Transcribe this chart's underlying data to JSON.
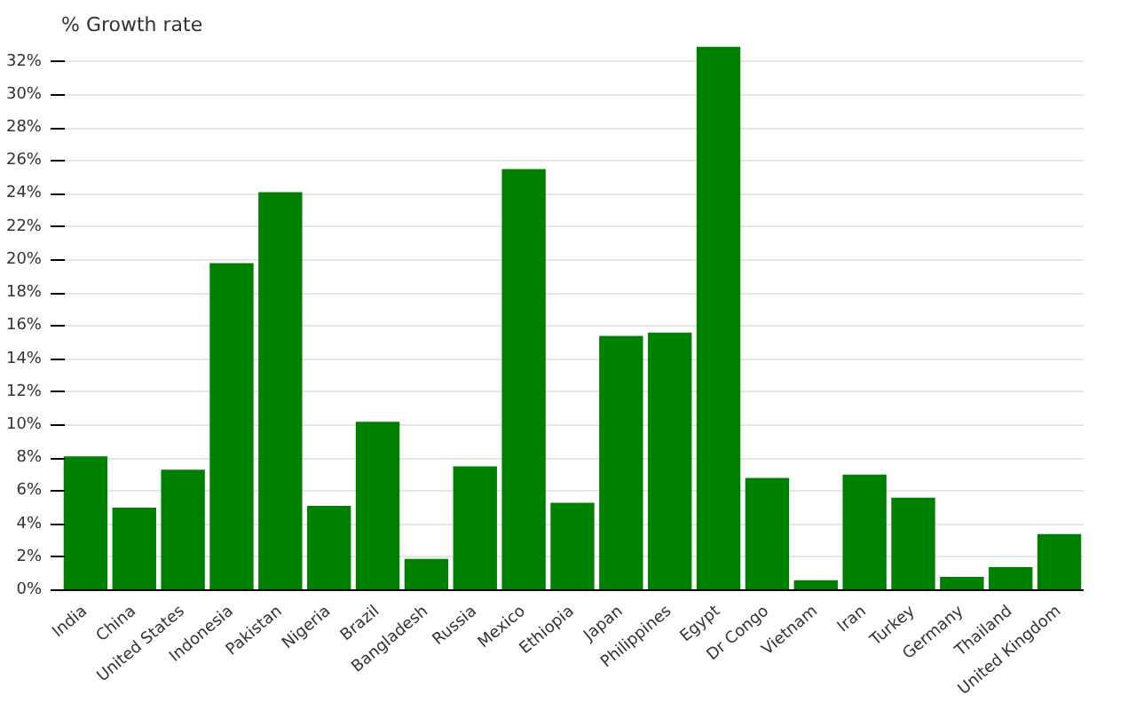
{
  "chart_data": {
    "type": "bar",
    "title": "% Growth rate",
    "categories": [
      "India",
      "China",
      "United States",
      "Indonesia",
      "Pakistan",
      "Nigeria",
      "Brazil",
      "Bangladesh",
      "Russia",
      "Mexico",
      "Ethiopia",
      "Japan",
      "Philippines",
      "Egypt",
      "Dr Congo",
      "Vietnam",
      "Iran",
      "Turkey",
      "Germany",
      "Thailand",
      "United Kingdom"
    ],
    "values": [
      8.1,
      5.0,
      7.3,
      19.8,
      24.1,
      5.1,
      10.2,
      1.9,
      7.5,
      25.5,
      5.3,
      15.4,
      15.6,
      32.9,
      6.8,
      0.6,
      7.0,
      5.6,
      0.8,
      1.4,
      3.4
    ],
    "color": "#008000",
    "ylim": [
      0,
      33
    ],
    "yticks": [
      {
        "value": 0,
        "label": "0%"
      },
      {
        "value": 2,
        "label": "2%"
      },
      {
        "value": 4,
        "label": "4%"
      },
      {
        "value": 6,
        "label": "6%"
      },
      {
        "value": 8,
        "label": "8%"
      },
      {
        "value": 10,
        "label": "10%"
      },
      {
        "value": 12,
        "label": "12%"
      },
      {
        "value": 14,
        "label": "14%"
      },
      {
        "value": 16,
        "label": "16%"
      },
      {
        "value": 18,
        "label": "18%"
      },
      {
        "value": 20,
        "label": "20%"
      },
      {
        "value": 22,
        "label": "22%"
      },
      {
        "value": 24,
        "label": "24%"
      },
      {
        "value": 26,
        "label": "26%"
      },
      {
        "value": 28,
        "label": "28%"
      },
      {
        "value": 30,
        "label": "30%"
      },
      {
        "value": 32,
        "label": "32%"
      }
    ],
    "grid": "y"
  }
}
